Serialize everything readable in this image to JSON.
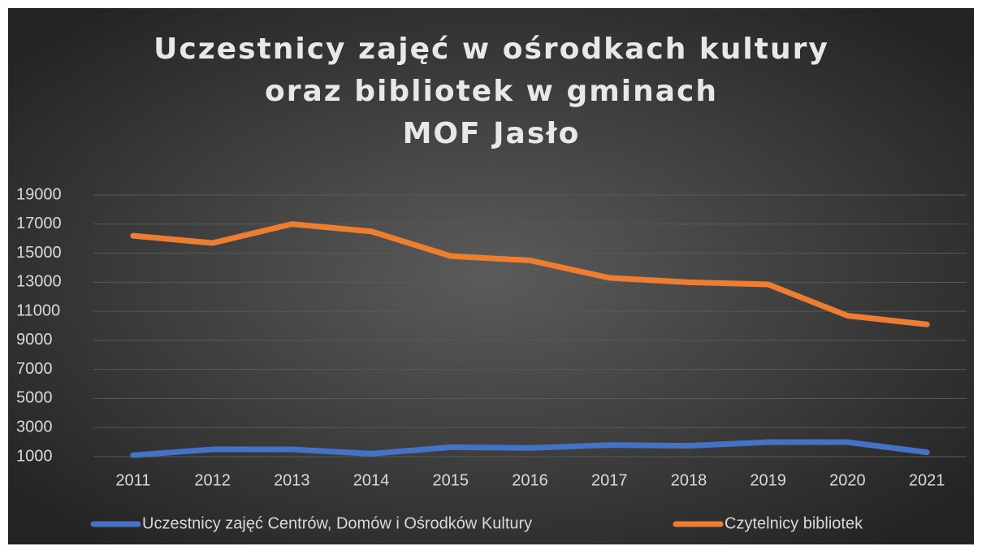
{
  "chart_data": {
    "type": "line",
    "title": [
      "Uczestnicy zajęć w ośrodkach kultury",
      "oraz bibliotek w gminach",
      "MOF Jasło"
    ],
    "categories": [
      "2011",
      "2012",
      "2013",
      "2014",
      "2015",
      "2016",
      "2017",
      "2018",
      "2019",
      "2020",
      "2021"
    ],
    "series": [
      {
        "name": "Uczestnicy zajęć Centrów, Domów i Ośrodków Kultury",
        "color": "#4472c4",
        "values": [
          1100,
          1500,
          1500,
          1200,
          1650,
          1600,
          1800,
          1750,
          2000,
          2000,
          1300
        ]
      },
      {
        "name": "Czytelnicy bibliotek",
        "color": "#ed7d31",
        "values": [
          16200,
          15700,
          17000,
          16500,
          14800,
          14500,
          13300,
          13000,
          12850,
          10700,
          10100
        ]
      }
    ],
    "ylim": [
      1000,
      19000
    ],
    "yticks": [
      1000,
      3000,
      5000,
      7000,
      9000,
      11000,
      13000,
      15000,
      17000,
      19000
    ],
    "grid": true,
    "legend": "bottom"
  }
}
